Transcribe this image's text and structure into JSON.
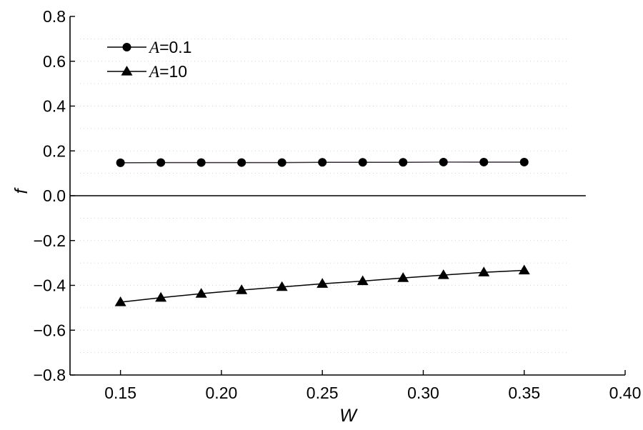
{
  "chart_data": {
    "type": "line",
    "title": "",
    "xlabel": "W",
    "ylabel": "f",
    "xlim": [
      0.125,
      0.4
    ],
    "ylim": [
      -0.8,
      0.8
    ],
    "xticks": [
      "0.15",
      "0.20",
      "0.25",
      "0.30",
      "0.35",
      "0.40"
    ],
    "yticks": [
      "0.8",
      "0.6",
      "0.4",
      "0.2",
      "0.0",
      "−0.2",
      "−0.4",
      "−0.6",
      "−0.8"
    ],
    "grid": "dotted",
    "zero_line": true,
    "legend_position": "top-left",
    "x": [
      0.15,
      0.17,
      0.19,
      0.21,
      0.23,
      0.25,
      0.27,
      0.29,
      0.31,
      0.33,
      0.35
    ],
    "series": [
      {
        "name_var": "A",
        "name_value": "=0.1",
        "marker": "circle",
        "values": [
          0.147,
          0.148,
          0.148,
          0.148,
          0.148,
          0.149,
          0.149,
          0.149,
          0.15,
          0.15,
          0.15
        ]
      },
      {
        "name_var": "A",
        "name_value": "=10",
        "marker": "triangle",
        "values": [
          -0.475,
          -0.455,
          -0.437,
          -0.421,
          -0.407,
          -0.393,
          -0.381,
          -0.367,
          -0.354,
          -0.342,
          -0.333
        ]
      }
    ]
  }
}
